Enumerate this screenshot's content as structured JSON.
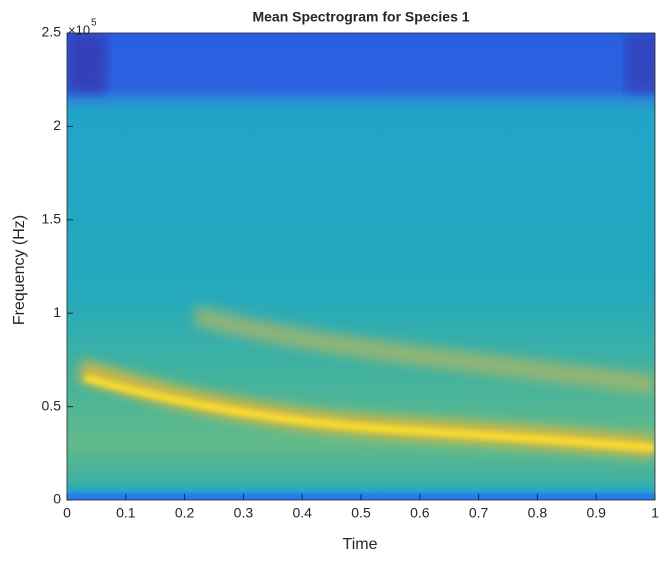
{
  "chart_data": {
    "type": "heatmap",
    "title": "Mean Spectrogram for Species 1",
    "x_label": "Time",
    "y_label": "Frequency (Hz)",
    "y_multiplier": {
      "base": "×10",
      "exponent": "5"
    },
    "xlim": [
      0,
      1
    ],
    "xticks": [
      0,
      0.1,
      0.2,
      0.3,
      0.4,
      0.5,
      0.6,
      0.7,
      0.8,
      0.9,
      1
    ],
    "ylim": [
      0,
      2.5
    ],
    "yticks": [
      0,
      0.5,
      1,
      1.5,
      2,
      2.5
    ]
  }
}
